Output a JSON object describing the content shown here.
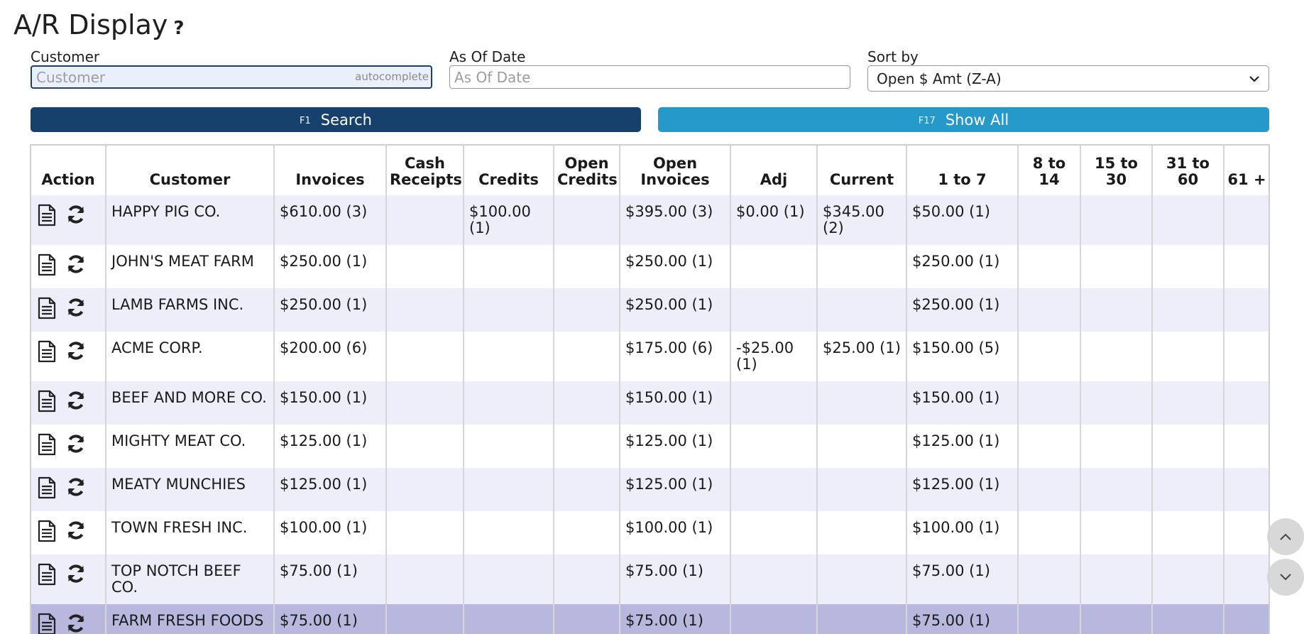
{
  "page": {
    "title": "A/R Display",
    "help": "?"
  },
  "filters": {
    "customer_label": "Customer",
    "customer_placeholder": "Customer",
    "customer_value": "",
    "autocomplete_hint": "autocomplete",
    "asof_label": "As Of Date",
    "asof_placeholder": "As Of Date",
    "asof_value": "",
    "sort_label": "Sort by",
    "sort_value": "Open $ Amt (Z-A)"
  },
  "buttons": {
    "search_key": "F1",
    "search_label": "Search",
    "showall_key": "F17",
    "showall_label": "Show All"
  },
  "table": {
    "headers": {
      "action": "Action",
      "customer": "Customer",
      "invoices": "Invoices",
      "cash_receipts": "Cash Receipts",
      "credits": "Credits",
      "open_credits": "Open Credits",
      "open_invoices": "Open Invoices",
      "adj": "Adj",
      "current": "Current",
      "d1_7": "1 to 7",
      "d8_14": "8 to 14",
      "d15_30": "15 to 30",
      "d31_60": "31 to 60",
      "d61": "61 +"
    },
    "rows": [
      {
        "customer": "HAPPY PIG CO.",
        "invoices": "$610.00 (3)",
        "cash_receipts": "",
        "credits": "$100.00 (1)",
        "open_credits": "",
        "open_invoices": "$395.00 (3)",
        "adj": "$0.00 (1)",
        "current": "$345.00 (2)",
        "d1_7": "$50.00 (1)",
        "d8_14": "",
        "d15_30": "",
        "d31_60": "",
        "d61": ""
      },
      {
        "customer": "JOHN'S MEAT FARM",
        "invoices": "$250.00 (1)",
        "cash_receipts": "",
        "credits": "",
        "open_credits": "",
        "open_invoices": "$250.00 (1)",
        "adj": "",
        "current": "",
        "d1_7": "$250.00 (1)",
        "d8_14": "",
        "d15_30": "",
        "d31_60": "",
        "d61": ""
      },
      {
        "customer": "LAMB FARMS INC.",
        "invoices": "$250.00 (1)",
        "cash_receipts": "",
        "credits": "",
        "open_credits": "",
        "open_invoices": "$250.00 (1)",
        "adj": "",
        "current": "",
        "d1_7": "$250.00 (1)",
        "d8_14": "",
        "d15_30": "",
        "d31_60": "",
        "d61": ""
      },
      {
        "customer": "ACME CORP.",
        "invoices": "$200.00 (6)",
        "cash_receipts": "",
        "credits": "",
        "open_credits": "",
        "open_invoices": "$175.00 (6)",
        "adj": "-$25.00 (1)",
        "current": "$25.00 (1)",
        "d1_7": "$150.00 (5)",
        "d8_14": "",
        "d15_30": "",
        "d31_60": "",
        "d61": ""
      },
      {
        "customer": "BEEF AND MORE CO.",
        "invoices": "$150.00 (1)",
        "cash_receipts": "",
        "credits": "",
        "open_credits": "",
        "open_invoices": "$150.00 (1)",
        "adj": "",
        "current": "",
        "d1_7": "$150.00 (1)",
        "d8_14": "",
        "d15_30": "",
        "d31_60": "",
        "d61": ""
      },
      {
        "customer": "MIGHTY MEAT CO.",
        "invoices": "$125.00 (1)",
        "cash_receipts": "",
        "credits": "",
        "open_credits": "",
        "open_invoices": "$125.00 (1)",
        "adj": "",
        "current": "",
        "d1_7": "$125.00 (1)",
        "d8_14": "",
        "d15_30": "",
        "d31_60": "",
        "d61": ""
      },
      {
        "customer": "MEATY MUNCHIES",
        "invoices": "$125.00 (1)",
        "cash_receipts": "",
        "credits": "",
        "open_credits": "",
        "open_invoices": "$125.00 (1)",
        "adj": "",
        "current": "",
        "d1_7": "$125.00 (1)",
        "d8_14": "",
        "d15_30": "",
        "d31_60": "",
        "d61": ""
      },
      {
        "customer": "TOWN FRESH INC.",
        "invoices": "$100.00 (1)",
        "cash_receipts": "",
        "credits": "",
        "open_credits": "",
        "open_invoices": "$100.00 (1)",
        "adj": "",
        "current": "",
        "d1_7": "$100.00 (1)",
        "d8_14": "",
        "d15_30": "",
        "d31_60": "",
        "d61": ""
      },
      {
        "customer": "TOP NOTCH BEEF CO.",
        "invoices": "$75.00 (1)",
        "cash_receipts": "",
        "credits": "",
        "open_credits": "",
        "open_invoices": "$75.00 (1)",
        "adj": "",
        "current": "",
        "d1_7": "$75.00 (1)",
        "d8_14": "",
        "d15_30": "",
        "d31_60": "",
        "d61": ""
      },
      {
        "customer": "FARM FRESH FOODS",
        "invoices": "$75.00 (1)",
        "cash_receipts": "",
        "credits": "",
        "open_credits": "",
        "open_invoices": "$75.00 (1)",
        "adj": "",
        "current": "",
        "d1_7": "$75.00 (1)",
        "d8_14": "",
        "d15_30": "",
        "d31_60": "",
        "d61": ""
      }
    ],
    "row_actions": [
      "document-icon",
      "refresh-icon"
    ],
    "selected_row_index": 9
  },
  "colors": {
    "search_button": "#16416d",
    "showall_button": "#2599c9",
    "row_stripe": "#eeeefb",
    "row_selected": "#b8b8df"
  }
}
